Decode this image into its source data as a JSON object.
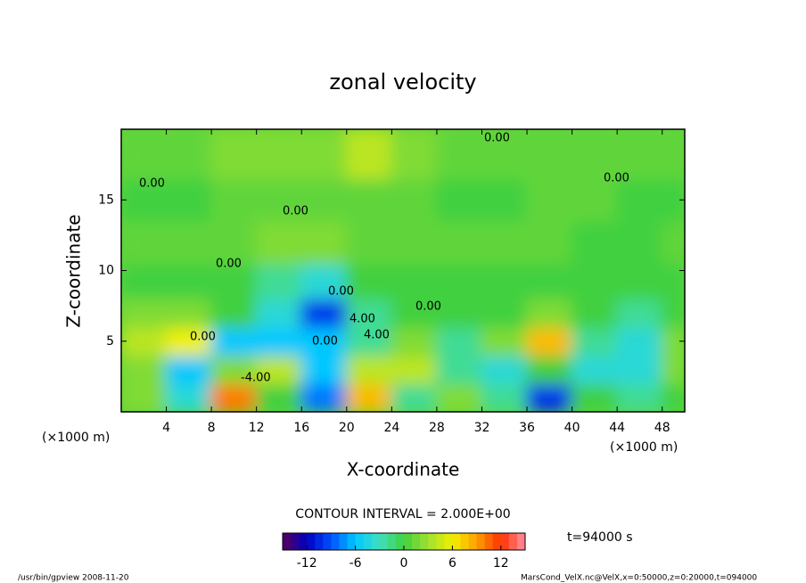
{
  "chart_data": {
    "type": "contour",
    "title": "zonal velocity",
    "x_label": "X-coordinate",
    "y_label": "Z-coordinate",
    "x_unit_left": "(×1000 m)",
    "x_unit_right": "(×1000 m)",
    "contour_interval": "CONTOUR INTERVAL = 2.000E+00",
    "time_label": "t=94000 s",
    "footer_left": "/usr/bin/gpview   2008-11-20",
    "footer_right": "MarsCond_VelX.nc@VelX,x=0:50000,z=0:20000,t=094000",
    "contour_labels": [
      "0.00",
      "0.00",
      "0.00",
      "0.00",
      "0.00",
      "0.00",
      "0.00",
      "0.00",
      "4.00",
      "-4.00",
      "4.00",
      "0.00"
    ],
    "xlim": [
      0,
      50
    ],
    "ylim": [
      0,
      20
    ],
    "xticks": [
      4,
      8,
      12,
      16,
      20,
      24,
      28,
      32,
      36,
      40,
      44,
      48
    ],
    "yticks": [
      5,
      10,
      15
    ],
    "x": [
      2,
      6,
      10,
      14,
      18,
      22,
      26,
      30,
      34,
      38,
      42,
      46,
      50
    ],
    "z": [
      1,
      3,
      5,
      7,
      9,
      12,
      15,
      18
    ],
    "values": [
      [
        2,
        -4,
        10,
        0,
        -8,
        8,
        -2,
        2,
        -2,
        -10,
        0,
        -2,
        0
      ],
      [
        2,
        -6,
        2,
        4,
        -6,
        4,
        4,
        -2,
        -4,
        0,
        -4,
        -4,
        2
      ],
      [
        4,
        6,
        -6,
        -6,
        -6,
        -2,
        2,
        -2,
        2,
        8,
        -2,
        -4,
        2
      ],
      [
        2,
        2,
        0,
        -4,
        -10,
        -2,
        0,
        0,
        0,
        2,
        0,
        -2,
        0
      ],
      [
        0,
        0,
        0,
        -2,
        -4,
        0,
        0,
        0,
        0,
        0,
        0,
        0,
        0
      ],
      [
        1,
        1,
        1,
        2,
        2,
        1,
        1,
        1,
        1,
        1,
        0,
        0,
        1
      ],
      [
        0,
        0,
        1,
        1,
        1,
        1,
        1,
        0,
        0,
        1,
        1,
        0,
        0
      ],
      [
        1,
        1,
        2,
        2,
        2,
        4,
        2,
        1,
        1,
        1,
        1,
        1,
        1
      ]
    ],
    "clim": [
      -15,
      15
    ],
    "cticks": [
      -12,
      -6,
      0,
      6,
      12
    ],
    "colormap": [
      {
        "value": -15,
        "color": "#5a005a"
      },
      {
        "value": -12,
        "color": "#0000c0"
      },
      {
        "value": -9,
        "color": "#0050ff"
      },
      {
        "value": -6,
        "color": "#00c8ff"
      },
      {
        "value": -3,
        "color": "#40e0c0"
      },
      {
        "value": 0,
        "color": "#40d040"
      },
      {
        "value": 3,
        "color": "#a0e030"
      },
      {
        "value": 6,
        "color": "#f0f000"
      },
      {
        "value": 9,
        "color": "#ffa000"
      },
      {
        "value": 12,
        "color": "#ff3000"
      },
      {
        "value": 15,
        "color": "#ff90a0"
      }
    ]
  }
}
